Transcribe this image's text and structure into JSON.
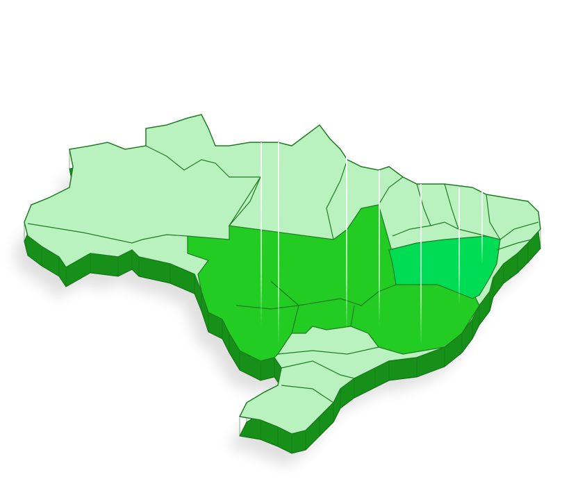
{
  "map": {
    "subject": "Brazil 3D map",
    "colors": {
      "base_region": "#b9f2bf",
      "highlight_region": "#22cc22",
      "bahia_region": "#00dd55",
      "extrusion": "#17901a",
      "extrusion_dark": "#0d6e10",
      "border": "#1f7a22",
      "light_beam": "#ffffff"
    }
  }
}
